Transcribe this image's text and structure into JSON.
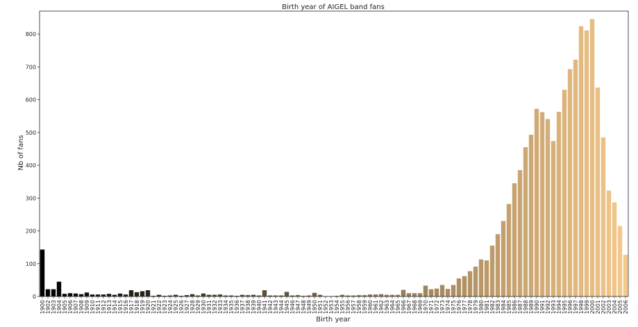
{
  "chart_data": {
    "type": "bar",
    "title": "Birth year of AIGEL band fans",
    "xlabel": "Birth year",
    "ylabel": "Nb of fans",
    "ylim": [
      0,
      870
    ],
    "yticks": [
      0,
      100,
      200,
      300,
      400,
      500,
      600,
      700,
      800
    ],
    "grid": false,
    "legend": "none",
    "color_start": "#000000",
    "color_end": "#f5c98a",
    "categories": [
      "1900",
      "1902",
      "1903",
      "1904",
      "1905",
      "1906",
      "1907",
      "1908",
      "1909",
      "1910",
      "1911",
      "1912",
      "1913",
      "1914",
      "1915",
      "1916",
      "1917",
      "1918",
      "1919",
      "1920",
      "1921",
      "1922",
      "1923",
      "1924",
      "1925",
      "1926",
      "1927",
      "1928",
      "1929",
      "1930",
      "1931",
      "1932",
      "1933",
      "1934",
      "1935",
      "1936",
      "1937",
      "1938",
      "1939",
      "1940",
      "1941",
      "1942",
      "1943",
      "1944",
      "1945",
      "1946",
      "1947",
      "1948",
      "1949",
      "1950",
      "1951",
      "1952",
      "1953",
      "1954",
      "1955",
      "1956",
      "1957",
      "1958",
      "1959",
      "1960",
      "1961",
      "1962",
      "1963",
      "1964",
      "1965",
      "1966",
      "1967",
      "1968",
      "1969",
      "1970",
      "1971",
      "1972",
      "1973",
      "1974",
      "1975",
      "1976",
      "1977",
      "1978",
      "1979",
      "1980",
      "1981",
      "1982",
      "1983",
      "1984",
      "1985",
      "1986",
      "1987",
      "1988",
      "1989",
      "1990",
      "1991",
      "1992",
      "1993",
      "1994",
      "1995",
      "1996",
      "1997",
      "1998",
      "1999",
      "2000",
      "2001",
      "2002",
      "2003",
      "2004",
      "2005",
      "2006"
    ],
    "values": [
      143,
      22,
      22,
      45,
      8,
      10,
      9,
      7,
      12,
      6,
      6,
      6,
      8,
      5,
      9,
      6,
      19,
      13,
      16,
      19,
      2,
      5,
      2,
      3,
      5,
      2,
      4,
      7,
      3,
      9,
      5,
      5,
      6,
      3,
      3,
      2,
      5,
      4,
      5,
      3,
      19,
      3,
      3,
      3,
      14,
      3,
      4,
      2,
      3,
      11,
      5,
      1,
      1,
      2,
      5,
      3,
      3,
      4,
      4,
      6,
      6,
      7,
      5,
      5,
      5,
      20,
      10,
      10,
      10,
      33,
      22,
      24,
      35,
      23,
      35,
      55,
      62,
      77,
      91,
      113,
      110,
      155,
      190,
      230,
      282,
      345,
      385,
      455,
      493,
      572,
      562,
      541,
      474,
      563,
      630,
      693,
      722,
      824,
      811,
      846,
      637,
      485,
      323,
      287,
      215,
      127
    ]
  }
}
